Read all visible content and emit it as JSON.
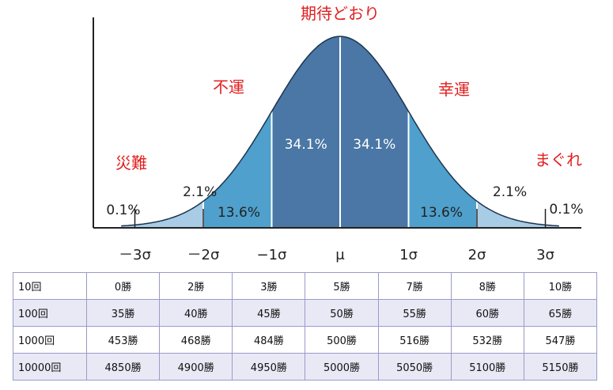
{
  "chart_data": {
    "type": "area",
    "title": "期待どおり",
    "xlabel": "",
    "ylabel": "",
    "x_ticks": [
      "－3σ",
      "－2σ",
      "−1σ",
      "μ",
      "1σ",
      "2σ",
      "3σ"
    ],
    "x_range": [
      -3.2,
      3.2
    ],
    "bands": [
      {
        "from": -3,
        "to": -2,
        "percent": "2.1%"
      },
      {
        "from": -2,
        "to": -1,
        "percent": "13.6%"
      },
      {
        "from": -1,
        "to": 0,
        "percent": "34.1%"
      },
      {
        "from": 0,
        "to": 1,
        "percent": "34.1%"
      },
      {
        "from": 1,
        "to": 2,
        "percent": "13.6%"
      },
      {
        "from": 2,
        "to": 3,
        "percent": "2.1%"
      }
    ],
    "tails": [
      {
        "side": "left",
        "percent": "0.1%"
      },
      {
        "side": "right",
        "percent": "0.1%"
      }
    ],
    "annotations": {
      "center": "期待どおり",
      "left_mid": "不運",
      "right_mid": "幸運",
      "left_tail": "災難",
      "right_tail": "まぐれ"
    },
    "colors": {
      "inner": "#4a77a5",
      "middle": "#4fa0cc",
      "outer": "#a8cce6",
      "outline": "#1c3550",
      "annotation": "#e02020"
    }
  },
  "table": {
    "rows": [
      {
        "label": "10回",
        "values": [
          "0勝",
          "2勝",
          "3勝",
          "5勝",
          "7勝",
          "8勝",
          "10勝"
        ]
      },
      {
        "label": "100回",
        "values": [
          "35勝",
          "40勝",
          "45勝",
          "50勝",
          "55勝",
          "60勝",
          "65勝"
        ]
      },
      {
        "label": "1000回",
        "values": [
          "453勝",
          "468勝",
          "484勝",
          "500勝",
          "516勝",
          "532勝",
          "547勝"
        ]
      },
      {
        "label": "10000回",
        "values": [
          "4850勝",
          "4900勝",
          "4950勝",
          "5000勝",
          "5050勝",
          "5100勝",
          "5150勝"
        ]
      }
    ]
  }
}
